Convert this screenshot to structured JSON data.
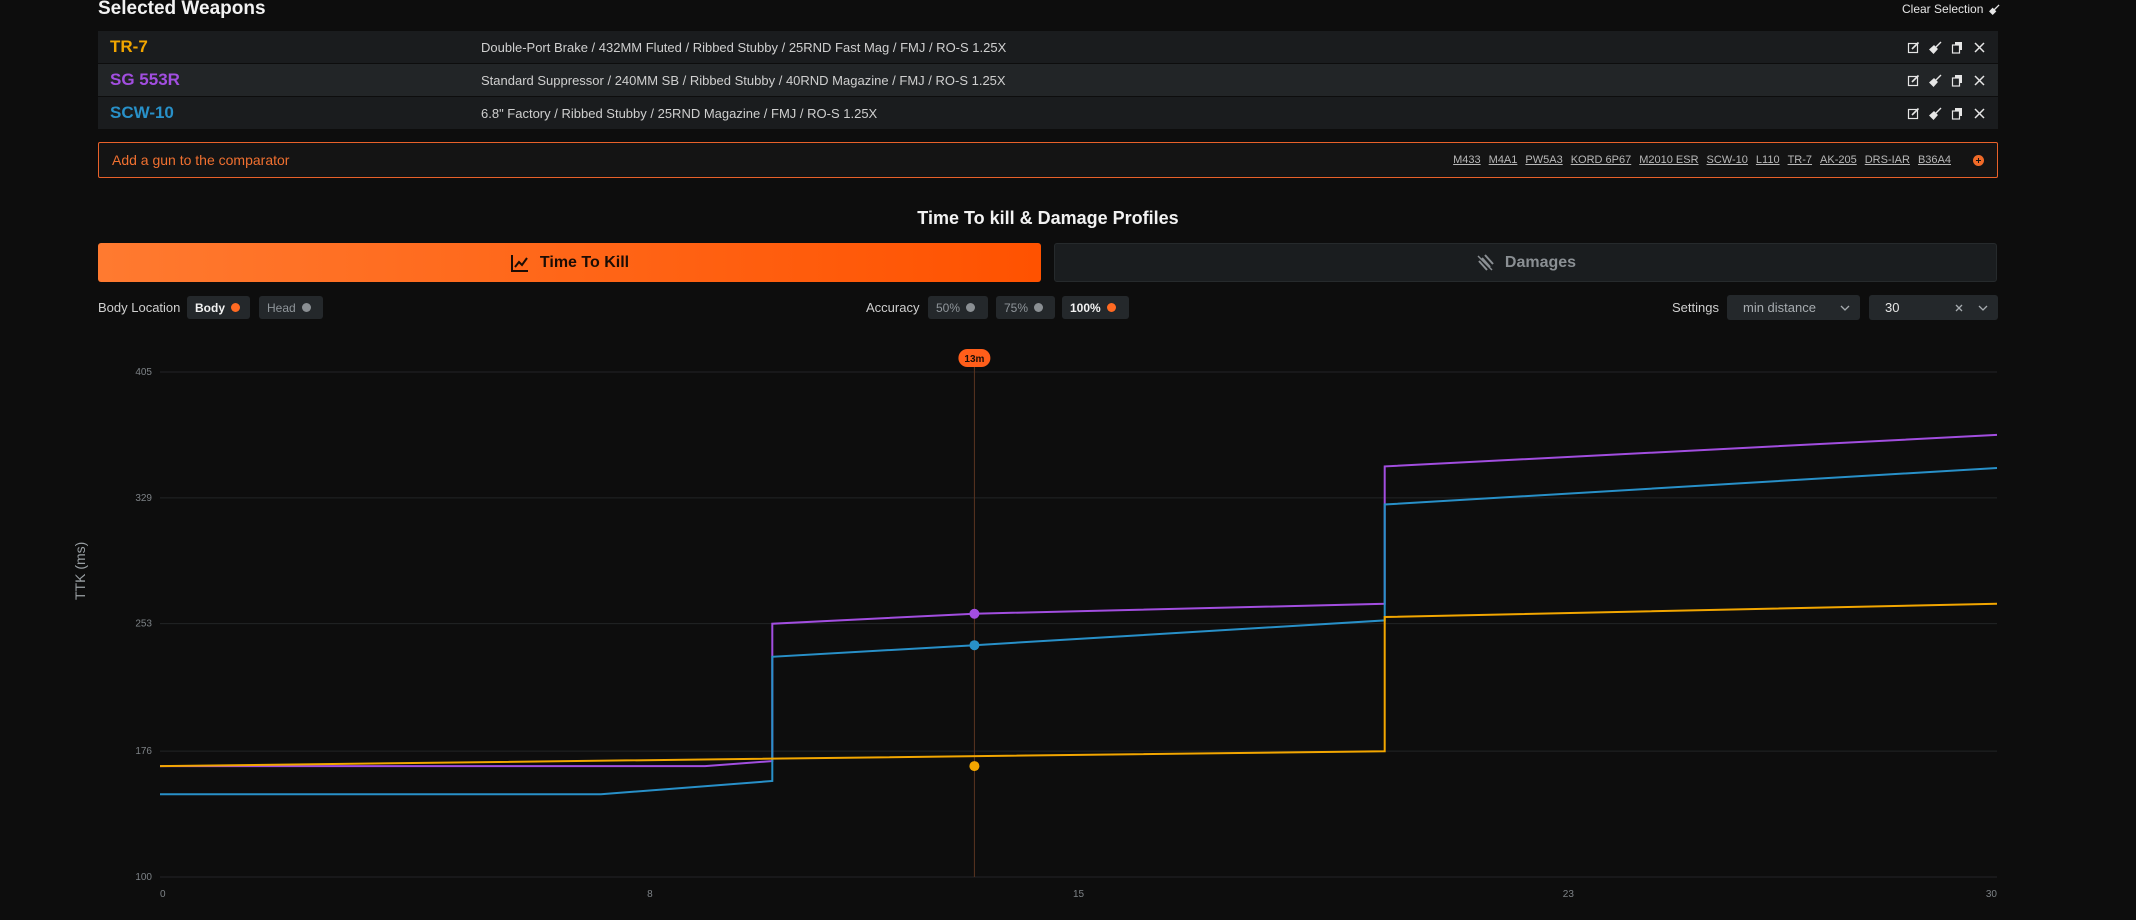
{
  "header": {
    "title": "Selected Weapons",
    "clear_label": "Clear Selection"
  },
  "weapons": [
    {
      "name": "TR-7",
      "color": "#f2a600",
      "config": "Double-Port Brake / 432MM Fluted / Ribbed Stubby / 25RND Fast Mag / FMJ / RO-S 1.25X"
    },
    {
      "name": "SG 553R",
      "color": "#a24ee0",
      "config": "Standard Suppressor / 240MM SB / Ribbed Stubby / 40RND Magazine / FMJ / RO-S 1.25X"
    },
    {
      "name": "SCW-10",
      "color": "#2890c8",
      "config": "6.8\" Factory / Ribbed Stubby / 25RND Magazine / FMJ / RO-S 1.25X"
    }
  ],
  "add_gun": {
    "label": "Add a gun to the comparator",
    "guns": [
      "M433",
      "M4A1",
      "PW5A3",
      "KORD 6P67",
      "M2010 ESR",
      "SCW-10",
      "L110",
      "TR-7",
      "AK-205",
      "DRS-IAR",
      "B36A4"
    ]
  },
  "section_title": "Time To kill & Damage Profiles",
  "tabs": {
    "ttk": "Time To Kill",
    "damages": "Damages",
    "active": "ttk"
  },
  "controls": {
    "body_location_label": "Body Location",
    "body_options": [
      {
        "label": "Body",
        "active": true
      },
      {
        "label": "Head",
        "active": false
      }
    ],
    "accuracy_label": "Accuracy",
    "accuracy_options": [
      {
        "label": "50%",
        "active": false
      },
      {
        "label": "75%",
        "active": false
      },
      {
        "label": "100%",
        "active": true
      }
    ],
    "settings_label": "Settings",
    "settings_select": "min distance",
    "settings_value": "30"
  },
  "chart_data": {
    "type": "line",
    "ylabel": "TTK (ms)",
    "xlabel": "",
    "xlim": [
      0,
      30
    ],
    "ylim": [
      100,
      405
    ],
    "x_ticks": [
      0,
      8,
      15,
      23,
      30
    ],
    "y_ticks": [
      100,
      176,
      253,
      329,
      405
    ],
    "grid": true,
    "cursor": {
      "x": 13.3,
      "label": "13m"
    },
    "series": [
      {
        "name": "SG 553R",
        "color": "#a24ee0",
        "points": [
          [
            0,
            167
          ],
          [
            8.9,
            167
          ],
          [
            10,
            170
          ],
          [
            10,
            253
          ],
          [
            13.3,
            259
          ],
          [
            20,
            265
          ],
          [
            20,
            348
          ],
          [
            30,
            367
          ]
        ],
        "marker": [
          13.3,
          259
        ]
      },
      {
        "name": "SCW-10",
        "color": "#2890c8",
        "points": [
          [
            0,
            150
          ],
          [
            7.2,
            150
          ],
          [
            10,
            158
          ],
          [
            10,
            233
          ],
          [
            13.3,
            240
          ],
          [
            20,
            255
          ],
          [
            20,
            325
          ],
          [
            30,
            347
          ]
        ],
        "marker": [
          13.3,
          240
        ]
      },
      {
        "name": "TR-7",
        "color": "#f2a600",
        "points": [
          [
            0,
            167
          ],
          [
            20,
            176
          ],
          [
            20,
            257
          ],
          [
            30,
            265
          ]
        ],
        "marker": [
          13.3,
          167
        ]
      }
    ]
  }
}
